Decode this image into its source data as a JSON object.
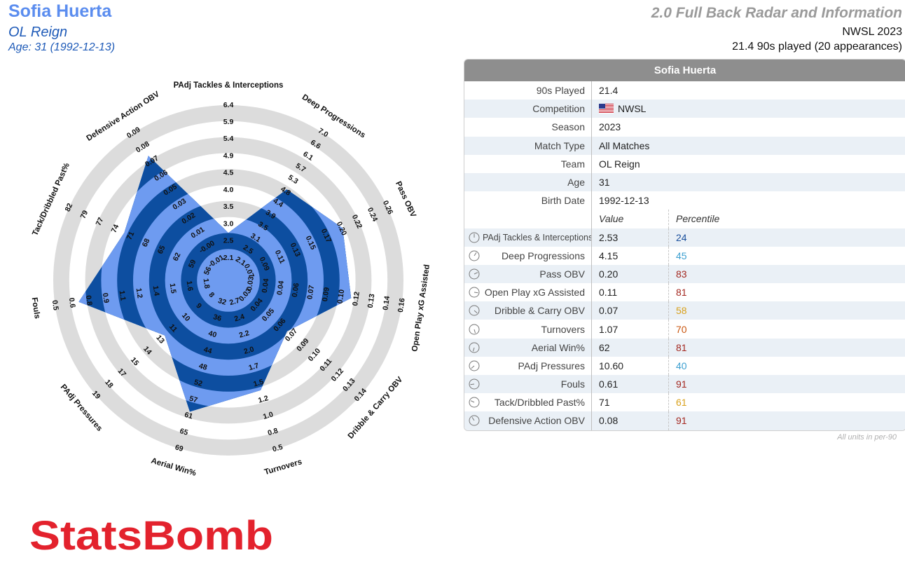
{
  "header": {
    "player_name": "Sofia Huerta",
    "team": "OL Reign",
    "age_line": "Age: 31 (1992-12-13)",
    "report_title": "2.0 Full Back Radar and Information",
    "competition_line": "NWSL 2023",
    "nineties_line": "21.4 90s played (20 appearances)"
  },
  "colors": {
    "player_name": "#5b8def",
    "team": "#1f5bb8",
    "radar_fill_light": "#6e9bf0",
    "radar_fill_dark": "#0d4ea0",
    "radar_rings": "#dcdcdc",
    "logo_red": "#e3222d"
  },
  "chart_data": {
    "type": "radar",
    "metrics": [
      {
        "label": "PAdj Tackles & Interceptions",
        "value": 2.53,
        "ticks": [
          "2.1",
          "2.5",
          "3.0",
          "3.5",
          "4.0",
          "4.5",
          "4.9",
          "5.4",
          "5.9",
          "6.4"
        ]
      },
      {
        "label": "Deep Progressions",
        "value": 4.15,
        "ticks": [
          "2.1",
          "2.5",
          "3.1",
          "3.5",
          "3.9",
          "4.4",
          "4.8",
          "5.3",
          "5.7",
          "6.1",
          "6.6",
          "7.0"
        ]
      },
      {
        "label": "Pass OBV",
        "value": 0.2,
        "ticks": [
          "0.07",
          "0.09",
          "0.11",
          "0.13",
          "0.15",
          "0.17",
          "0.20",
          "0.22",
          "0.24",
          "0.26"
        ]
      },
      {
        "label": "Open Play xG Assisted",
        "value": 0.11,
        "ticks": [
          "0.03",
          "0.04",
          "0.04",
          "0.06",
          "0.07",
          "0.09",
          "0.10",
          "0.12",
          "0.13",
          "0.14",
          "0.16"
        ]
      },
      {
        "label": "Dribble & Carry OBV",
        "value": 0.07,
        "ticks": [
          "0.03",
          "0.04",
          "0.05",
          "0.06",
          "0.07",
          "0.09",
          "0.10",
          "0.11",
          "0.12",
          "0.13",
          "0.14"
        ]
      },
      {
        "label": "Turnovers",
        "value": 1.07,
        "ticks": [
          "2.7",
          "2.4",
          "2.2",
          "2.0",
          "1.7",
          "1.5",
          "1.2",
          "1.0",
          "0.8",
          "0.5"
        ]
      },
      {
        "label": "Aerial Win%",
        "value": 62,
        "ticks": [
          "32",
          "36",
          "40",
          "44",
          "48",
          "52",
          "57",
          "61",
          "65",
          "69"
        ]
      },
      {
        "label": "PAdj Pressures",
        "value": 10.6,
        "ticks": [
          "8",
          "9",
          "10",
          "11",
          "13",
          "14",
          "15",
          "17",
          "18",
          "19"
        ]
      },
      {
        "label": "Fouls",
        "value": 0.61,
        "ticks": [
          "1.8",
          "1.6",
          "1.5",
          "1.4",
          "1.2",
          "1.1",
          "0.9",
          "0.8",
          "0.6",
          "0.5"
        ]
      },
      {
        "label": "Tack/Dribbled Past%",
        "value": 71,
        "ticks": [
          "56",
          "59",
          "62",
          "65",
          "68",
          "71",
          "74",
          "77",
          "79",
          "82"
        ]
      },
      {
        "label": "Defensive Action OBV",
        "value": 0.08,
        "ticks": [
          "-0.01",
          "-0.00",
          "0.01",
          "0.02",
          "0.03",
          "0.05",
          "0.06",
          "0.07",
          "0.08",
          "0.09"
        ]
      }
    ],
    "player_extents": [
      0.2,
      0.58,
      0.69,
      0.68,
      0.39,
      0.62,
      0.76,
      0.43,
      0.85,
      0.62,
      0.83
    ]
  },
  "table": {
    "title": "Sofia Huerta",
    "info_rows": [
      {
        "label": "90s Played",
        "value": "21.4"
      },
      {
        "label": "Competition",
        "value": "NWSL",
        "flag": "us-flag"
      },
      {
        "label": "Season",
        "value": "2023"
      },
      {
        "label": "Match Type",
        "value": "All Matches"
      },
      {
        "label": "Team",
        "value": "OL Reign"
      },
      {
        "label": "Age",
        "value": "31"
      },
      {
        "label": "Birth Date",
        "value": "1992-12-13"
      }
    ],
    "value_header": "Value",
    "percentile_header": "Percentile",
    "metric_rows": [
      {
        "label": "PAdj Tackles & Interceptions",
        "value": "2.53",
        "percentile": "24",
        "pct_color": "#1a4f9c"
      },
      {
        "label": "Deep Progressions",
        "value": "4.15",
        "percentile": "45",
        "pct_color": "#3b9fd0"
      },
      {
        "label": "Pass OBV",
        "value": "0.20",
        "percentile": "83",
        "pct_color": "#a3271f"
      },
      {
        "label": "Open Play xG Assisted",
        "value": "0.11",
        "percentile": "81",
        "pct_color": "#a3271f"
      },
      {
        "label": "Dribble & Carry OBV",
        "value": "0.07",
        "percentile": "58",
        "pct_color": "#d9a11c"
      },
      {
        "label": "Turnovers",
        "value": "1.07",
        "percentile": "70",
        "pct_color": "#c9550f"
      },
      {
        "label": "Aerial Win%",
        "value": "62",
        "percentile": "81",
        "pct_color": "#a3271f"
      },
      {
        "label": "PAdj Pressures",
        "value": "10.60",
        "percentile": "40",
        "pct_color": "#3b9fd0"
      },
      {
        "label": "Fouls",
        "value": "0.61",
        "percentile": "91",
        "pct_color": "#a3271f"
      },
      {
        "label": "Tack/Dribbled Past%",
        "value": "71",
        "percentile": "61",
        "pct_color": "#d9a11c"
      },
      {
        "label": "Defensive Action OBV",
        "value": "0.08",
        "percentile": "91",
        "pct_color": "#a3271f"
      }
    ],
    "footnote": "All units in per-90"
  },
  "logo": {
    "text": "StatsBomb"
  }
}
